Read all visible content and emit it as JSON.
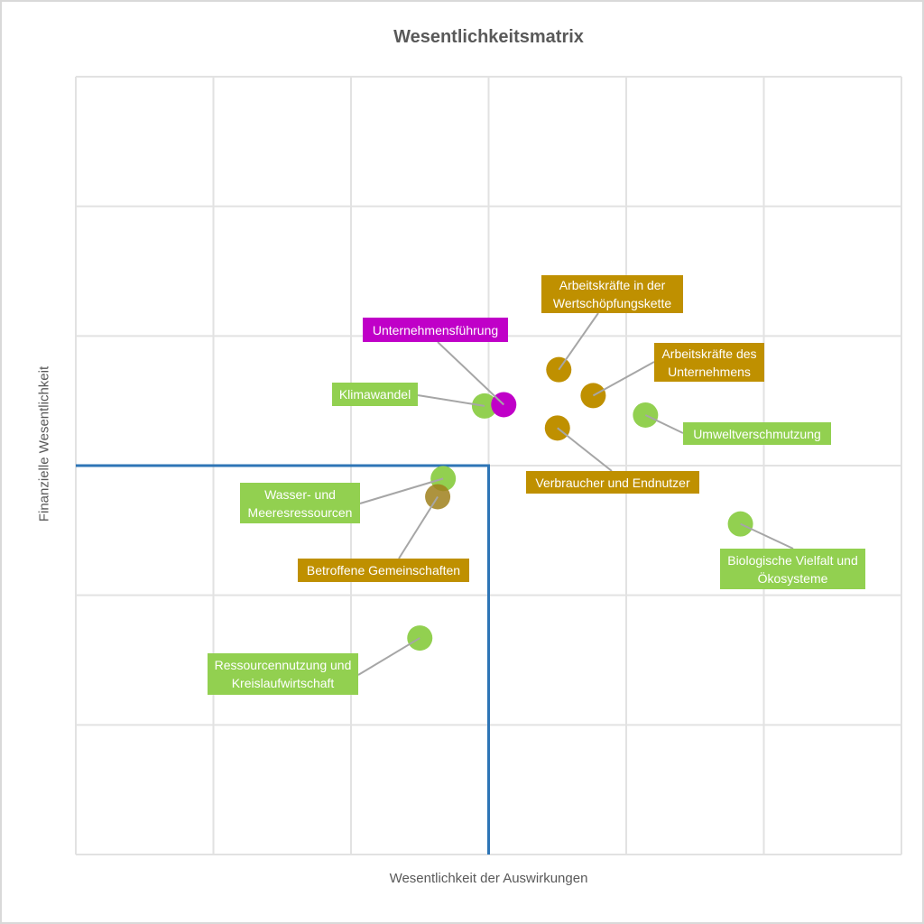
{
  "chart_data": {
    "type": "scatter",
    "title": "Wesentlichkeitsmatrix",
    "xlabel": "Wesentlichkeit der Auswirkungen",
    "ylabel": "Finanzielle Wesentlichkeit",
    "xlim": [
      0,
      6
    ],
    "ylim": [
      0,
      6
    ],
    "grid": true,
    "grid_steps": 6,
    "legend": "none",
    "threshold_line": {
      "description": "L-shaped materiality threshold at x=3 and y=3",
      "x": 3,
      "y": 3,
      "color": "#2E75B6"
    },
    "colors": {
      "green": "#92D050",
      "gold": "#BF9000",
      "magenta": "#C000C8",
      "leader_line": "#A6A6A6",
      "grid_line": "#E2E2E2",
      "text": "#595959",
      "label_text": "#FFFFFF"
    },
    "point_radius": 14,
    "points": [
      {
        "slug": "klimawandel",
        "label": "Klimawandel",
        "x": 2.97,
        "y": 3.46,
        "series": "green",
        "label_lines": [
          "Klimawandel"
        ],
        "label_box": [
          366,
          422,
          95,
          26
        ],
        "leader_attach": [
          461,
          436
        ]
      },
      {
        "slug": "unternehmensfuehrung",
        "label": "Unternehmensführung",
        "x": 3.11,
        "y": 3.47,
        "series": "magenta",
        "label_lines": [
          "Unternehmensführung"
        ],
        "label_box": [
          400,
          350,
          161,
          27
        ],
        "leader_attach": [
          483,
          377
        ]
      },
      {
        "slug": "arbeitskraefte-wertschoepfungskette",
        "label": "Arbeitskräfte in der Wertschöpfungskette",
        "x": 3.51,
        "y": 3.74,
        "series": "gold",
        "label_lines": [
          "Arbeitskräfte in der",
          "Wertschöpfungskette"
        ],
        "label_box": [
          598,
          303,
          157,
          42
        ],
        "leader_attach": [
          661,
          345
        ]
      },
      {
        "slug": "arbeitskraefte-unternehmen",
        "label": "Arbeitskräfte des Unternehmens",
        "x": 3.76,
        "y": 3.54,
        "series": "gold",
        "label_lines": [
          "Arbeitskräfte des",
          "Unternehmens"
        ],
        "label_box": [
          723,
          378,
          122,
          43
        ],
        "leader_attach": [
          723,
          399
        ]
      },
      {
        "slug": "umweltverschmutzung",
        "label": "Umweltverschmutzung",
        "x": 4.14,
        "y": 3.39,
        "series": "green",
        "label_lines": [
          "Umweltverschmutzung"
        ],
        "label_box": [
          755,
          466,
          164,
          25
        ],
        "leader_attach": [
          755,
          478
        ]
      },
      {
        "slug": "verbraucher-endnutzer",
        "label": "Verbraucher und Endnutzer",
        "x": 3.5,
        "y": 3.29,
        "series": "gold",
        "label_lines": [
          "Verbraucher und Endnutzer"
        ],
        "label_box": [
          581,
          520,
          192,
          25
        ],
        "leader_attach": [
          676,
          520
        ]
      },
      {
        "slug": "wasser-meeresressourcen",
        "label": "Wasser- und Meeresressourcen",
        "x": 2.67,
        "y": 2.9,
        "series": "green",
        "label_lines": [
          "Wasser- und",
          "Meeresressourcen"
        ],
        "label_box": [
          264,
          533,
          133,
          45
        ],
        "leader_attach": [
          397,
          556
        ]
      },
      {
        "slug": "betroffene-gemeinschaften",
        "label": "Betroffene Gemeinschaften",
        "x": 2.63,
        "y": 2.76,
        "series": "gold",
        "dot_color": "#9F801C",
        "dot_opacity": 0.85,
        "label_lines": [
          "Betroffene Gemeinschaften"
        ],
        "label_box": [
          328,
          617,
          190,
          26
        ],
        "leader_attach": [
          440,
          617
        ]
      },
      {
        "slug": "biologische-vielfalt",
        "label": "Biologische Vielfalt und Ökosysteme",
        "x": 4.83,
        "y": 2.55,
        "series": "green",
        "label_lines": [
          "Biologische Vielfalt und",
          "Ökosysteme"
        ],
        "label_box": [
          796,
          606,
          161,
          45
        ],
        "leader_attach": [
          877,
          606
        ]
      },
      {
        "slug": "ressourcennutzung",
        "label": "Ressourcennutzung und Kreislaufwirtschaft",
        "x": 2.5,
        "y": 1.67,
        "series": "green",
        "label_lines": [
          "Ressourcennutzung und",
          "Kreislaufwirtschaft"
        ],
        "label_box": [
          228,
          722,
          167,
          46
        ],
        "leader_attach": [
          395,
          746
        ]
      }
    ]
  }
}
